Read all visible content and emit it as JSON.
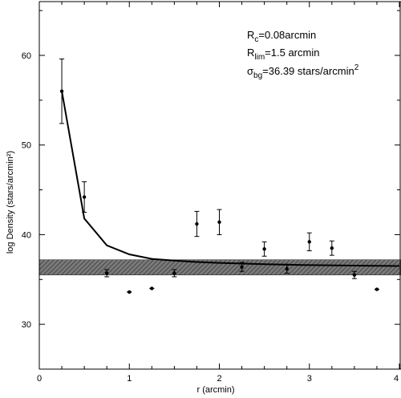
{
  "chart_data": {
    "type": "scatter",
    "xlabel": "r (arcmin)",
    "ylabel": "log Density (stars/arcmin²)",
    "xlim": [
      0,
      4
    ],
    "ylim": [
      25,
      66
    ],
    "x_ticks": [
      0,
      1,
      2,
      3,
      4
    ],
    "y_ticks": [
      30,
      40,
      50,
      60
    ],
    "grid": false,
    "legend": "none",
    "annotations": {
      "line1": {
        "pre": "R",
        "sub": "c",
        "post": "=0.08arcmin"
      },
      "line2": {
        "pre": "R",
        "sub": "lim",
        "post": "=1.5 arcmin"
      },
      "line3": {
        "pre": "σ",
        "sub": "bg",
        "post": "=36.39 stars/arcmin",
        "sup": "2"
      }
    },
    "background_band": {
      "center": 36.39,
      "low": 35.5,
      "high": 37.2
    },
    "points": [
      {
        "x": 0.25,
        "y": 56.0,
        "err": 3.6
      },
      {
        "x": 0.5,
        "y": 44.2,
        "err": 1.7
      },
      {
        "x": 0.75,
        "y": 35.7,
        "err": 0.4
      },
      {
        "x": 1.0,
        "y": 33.6,
        "err": 0.1
      },
      {
        "x": 1.25,
        "y": 34.0,
        "err": 0.15
      },
      {
        "x": 1.5,
        "y": 35.7,
        "err": 0.4
      },
      {
        "x": 1.75,
        "y": 41.2,
        "err": 1.4
      },
      {
        "x": 2.0,
        "y": 41.4,
        "err": 1.4
      },
      {
        "x": 2.25,
        "y": 36.4,
        "err": 0.5
      },
      {
        "x": 2.5,
        "y": 38.4,
        "err": 0.8
      },
      {
        "x": 2.75,
        "y": 36.2,
        "err": 0.5
      },
      {
        "x": 3.0,
        "y": 39.2,
        "err": 1.0
      },
      {
        "x": 3.25,
        "y": 38.5,
        "err": 0.8
      },
      {
        "x": 3.5,
        "y": 35.5,
        "err": 0.4
      },
      {
        "x": 3.75,
        "y": 33.9,
        "err": 0.1
      }
    ],
    "fit_line": {
      "x": [
        0.25,
        0.5,
        0.75,
        1.0,
        1.25,
        1.5,
        1.75,
        2.0,
        2.5,
        3.0,
        3.5,
        4.0
      ],
      "y": [
        56.0,
        41.8,
        38.8,
        37.8,
        37.3,
        37.1,
        36.95,
        36.85,
        36.7,
        36.6,
        36.55,
        36.5
      ]
    }
  }
}
